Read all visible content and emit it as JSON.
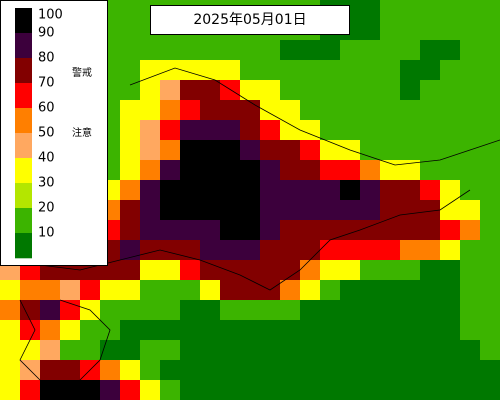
{
  "date_label": "2025年05月01日",
  "legend": {
    "ticks": [
      100,
      90,
      80,
      70,
      60,
      50,
      40,
      30,
      20,
      10
    ],
    "warning": "警戒",
    "caution": "注意",
    "palette": [
      {
        "min": 90,
        "color": "#000000"
      },
      {
        "min": 80,
        "color": "#3c003c"
      },
      {
        "min": 70,
        "color": "#820000"
      },
      {
        "min": 60,
        "color": "#ff0000"
      },
      {
        "min": 50,
        "color": "#ff7f00"
      },
      {
        "min": 40,
        "color": "#ffa860"
      },
      {
        "min": 30,
        "color": "#ffff00"
      },
      {
        "min": 20,
        "color": "#b4e600"
      },
      {
        "min": 10,
        "color": "#3cb400"
      },
      {
        "min": 0,
        "color": "#007800"
      }
    ]
  },
  "grid": [
    [
      10,
      10,
      10,
      10,
      10,
      10,
      10,
      10,
      10,
      10,
      10,
      10,
      10,
      10,
      10,
      10,
      0,
      0,
      0,
      10,
      10,
      10,
      10,
      10,
      10
    ],
    [
      10,
      10,
      10,
      10,
      10,
      10,
      10,
      10,
      10,
      10,
      10,
      10,
      10,
      10,
      10,
      10,
      0,
      0,
      0,
      10,
      10,
      10,
      10,
      10,
      10
    ],
    [
      10,
      10,
      10,
      10,
      10,
      10,
      10,
      10,
      10,
      10,
      10,
      10,
      10,
      10,
      0,
      0,
      0,
      10,
      10,
      10,
      10,
      0,
      0,
      10,
      10
    ],
    [
      10,
      10,
      10,
      10,
      10,
      10,
      10,
      30,
      30,
      30,
      30,
      30,
      10,
      10,
      10,
      10,
      10,
      10,
      10,
      10,
      0,
      0,
      10,
      10,
      10
    ],
    [
      10,
      10,
      10,
      10,
      10,
      10,
      10,
      30,
      40,
      70,
      70,
      60,
      30,
      30,
      10,
      10,
      10,
      10,
      10,
      10,
      0,
      10,
      10,
      10,
      10
    ],
    [
      10,
      10,
      10,
      10,
      10,
      10,
      30,
      30,
      50,
      60,
      70,
      70,
      70,
      30,
      30,
      10,
      10,
      10,
      10,
      10,
      10,
      10,
      10,
      10,
      10
    ],
    [
      10,
      10,
      10,
      10,
      10,
      10,
      30,
      40,
      60,
      80,
      80,
      80,
      70,
      60,
      30,
      30,
      10,
      10,
      10,
      10,
      10,
      10,
      10,
      10,
      10
    ],
    [
      10,
      10,
      10,
      10,
      10,
      10,
      30,
      40,
      50,
      90,
      90,
      90,
      80,
      70,
      70,
      60,
      30,
      30,
      10,
      10,
      10,
      10,
      10,
      10,
      10
    ],
    [
      10,
      10,
      10,
      10,
      10,
      10,
      30,
      50,
      80,
      90,
      90,
      90,
      90,
      80,
      70,
      70,
      60,
      60,
      50,
      30,
      30,
      10,
      10,
      10,
      10
    ],
    [
      10,
      10,
      10,
      10,
      10,
      30,
      50,
      80,
      90,
      90,
      90,
      90,
      90,
      80,
      80,
      80,
      80,
      90,
      80,
      70,
      70,
      60,
      30,
      10,
      10
    ],
    [
      10,
      10,
      10,
      10,
      10,
      50,
      70,
      80,
      90,
      90,
      90,
      90,
      90,
      80,
      80,
      80,
      80,
      80,
      80,
      70,
      70,
      70,
      30,
      30,
      10
    ],
    [
      10,
      10,
      10,
      10,
      10,
      60,
      70,
      80,
      80,
      80,
      80,
      90,
      90,
      80,
      70,
      70,
      70,
      70,
      70,
      70,
      70,
      70,
      60,
      50,
      10
    ],
    [
      40,
      40,
      50,
      60,
      70,
      70,
      80,
      70,
      70,
      70,
      80,
      80,
      80,
      70,
      70,
      70,
      60,
      60,
      60,
      60,
      50,
      50,
      30,
      10,
      10
    ],
    [
      40,
      60,
      70,
      70,
      70,
      70,
      70,
      30,
      30,
      60,
      70,
      70,
      70,
      70,
      70,
      50,
      30,
      30,
      10,
      10,
      10,
      0,
      0,
      10,
      10
    ],
    [
      30,
      50,
      50,
      40,
      60,
      30,
      30,
      10,
      10,
      10,
      30,
      70,
      70,
      70,
      50,
      30,
      10,
      0,
      0,
      0,
      0,
      0,
      0,
      10,
      10
    ],
    [
      50,
      70,
      80,
      60,
      30,
      10,
      10,
      10,
      10,
      0,
      0,
      10,
      10,
      10,
      10,
      0,
      0,
      0,
      0,
      0,
      0,
      0,
      0,
      10,
      10
    ],
    [
      30,
      60,
      50,
      30,
      10,
      10,
      0,
      0,
      0,
      0,
      0,
      0,
      0,
      0,
      0,
      0,
      0,
      0,
      0,
      0,
      0,
      0,
      0,
      10,
      10
    ],
    [
      30,
      30,
      40,
      10,
      10,
      0,
      0,
      10,
      10,
      0,
      0,
      0,
      0,
      0,
      0,
      0,
      0,
      0,
      0,
      0,
      0,
      0,
      0,
      0,
      10
    ],
    [
      30,
      40,
      70,
      70,
      60,
      50,
      30,
      10,
      0,
      0,
      0,
      0,
      0,
      0,
      0,
      0,
      0,
      0,
      0,
      0,
      0,
      0,
      0,
      0,
      0
    ],
    [
      30,
      60,
      90,
      90,
      90,
      80,
      60,
      30,
      10,
      0,
      0,
      0,
      0,
      0,
      0,
      0,
      0,
      0,
      0,
      0,
      0,
      0,
      0,
      0,
      0
    ]
  ]
}
